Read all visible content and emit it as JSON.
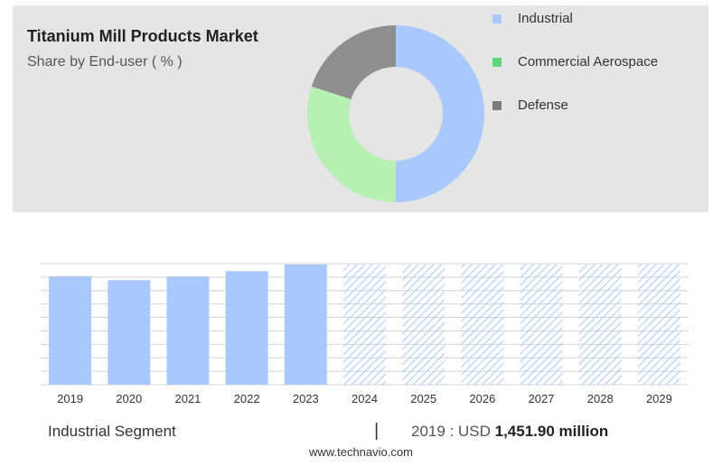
{
  "title": "Titanium Mill Products Market",
  "subtitle": "Share by End-user ( % )",
  "colors": {
    "industrial": "#a9c8fb",
    "commercial_aerospace": "#b6f0b2",
    "defense": "#8f8f8f",
    "hatch": "#a9c8fb",
    "grid": "#d4d4d4",
    "panel": "#e5e5e5"
  },
  "legend": [
    {
      "label": "Industrial",
      "color": "#a9c8fb",
      "swatch": "#a9c8fb"
    },
    {
      "label": "Commercial Aerospace",
      "color": "#b6f0b2",
      "swatch": "#5fd67a"
    },
    {
      "label": "Defense",
      "color": "#8f8f8f",
      "swatch": "#7b7b7b"
    }
  ],
  "chart_data": [
    {
      "type": "pie",
      "title": "Titanium Mill Products Market",
      "subtitle": "Share by End-user ( % )",
      "categories": [
        "Industrial",
        "Commercial Aerospace",
        "Defense"
      ],
      "values": [
        50,
        30,
        20
      ],
      "donut": true
    },
    {
      "type": "bar",
      "categories": [
        "2019",
        "2020",
        "2021",
        "2022",
        "2023",
        "2024",
        "2025",
        "2026",
        "2027",
        "2028",
        "2029"
      ],
      "values": [
        1451.9,
        1400,
        1450,
        1520,
        1610,
        1610,
        1610,
        1610,
        1610,
        1610,
        1610
      ],
      "forecast_from": "2024",
      "ylim": [
        0,
        1620
      ],
      "grid": true
    }
  ],
  "footer": {
    "segment": "Industrial Segment",
    "separator": "|",
    "value_prefix": "2019 : USD",
    "value_bold": "1,451.90 million"
  },
  "source": "www.technavio.com"
}
